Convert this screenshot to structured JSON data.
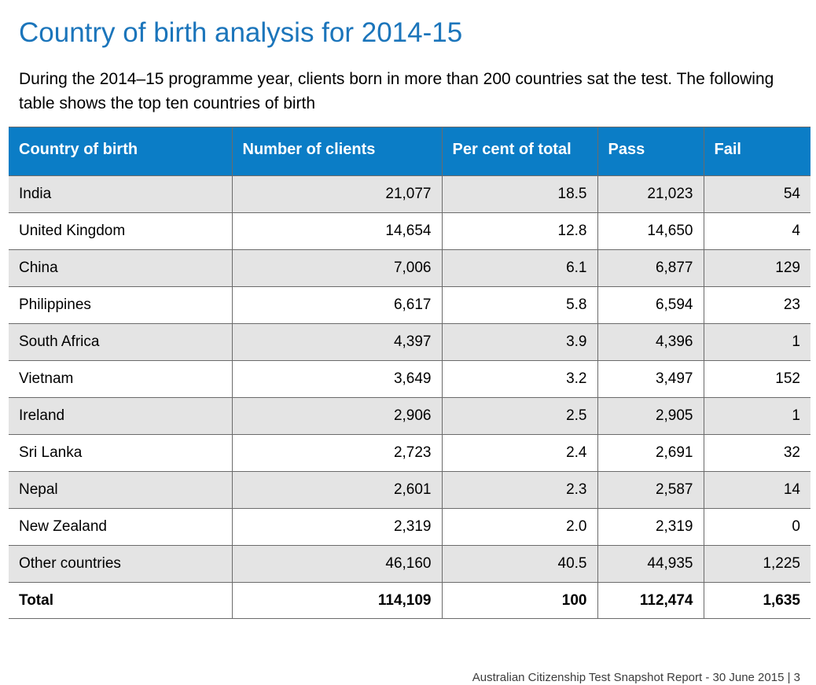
{
  "page": {
    "title": "Country of birth analysis for 2014-15",
    "intro": "During the 2014–15 programme year, clients born in more than 200 countries sat the test. The following table shows the top ten countries of birth",
    "footer": "Australian Citizenship Test Snapshot Report - 30 June 2015 | 3"
  },
  "colors": {
    "title": "#1b75bb",
    "header_bg": "#0b7dc6",
    "row_shade": "#e4e4e4"
  },
  "table": {
    "headers": [
      "Country of birth",
      "Number of clients",
      "Per cent of total",
      "Pass",
      "Fail"
    ],
    "rows": [
      {
        "country": "India",
        "clients": "21,077",
        "percent": "18.5",
        "pass": "21,023",
        "fail": "54"
      },
      {
        "country": "United Kingdom",
        "clients": "14,654",
        "percent": "12.8",
        "pass": "14,650",
        "fail": "4"
      },
      {
        "country": "China",
        "clients": "7,006",
        "percent": "6.1",
        "pass": "6,877",
        "fail": "129"
      },
      {
        "country": "Philippines",
        "clients": "6,617",
        "percent": "5.8",
        "pass": "6,594",
        "fail": "23"
      },
      {
        "country": "South Africa",
        "clients": "4,397",
        "percent": "3.9",
        "pass": "4,396",
        "fail": "1"
      },
      {
        "country": "Vietnam",
        "clients": "3,649",
        "percent": "3.2",
        "pass": "3,497",
        "fail": "152"
      },
      {
        "country": "Ireland",
        "clients": "2,906",
        "percent": "2.5",
        "pass": "2,905",
        "fail": "1"
      },
      {
        "country": "Sri Lanka",
        "clients": "2,723",
        "percent": "2.4",
        "pass": "2,691",
        "fail": "32"
      },
      {
        "country": "Nepal",
        "clients": "2,601",
        "percent": "2.3",
        "pass": "2,587",
        "fail": "14"
      },
      {
        "country": "New Zealand",
        "clients": "2,319",
        "percent": "2.0",
        "pass": "2,319",
        "fail": "0"
      },
      {
        "country": "Other countries",
        "clients": "46,160",
        "percent": "40.5",
        "pass": "44,935",
        "fail": "1,225"
      }
    ],
    "total": {
      "country": "Total",
      "clients": "114,109",
      "percent": "100",
      "pass": "112,474",
      "fail": "1,635"
    }
  }
}
